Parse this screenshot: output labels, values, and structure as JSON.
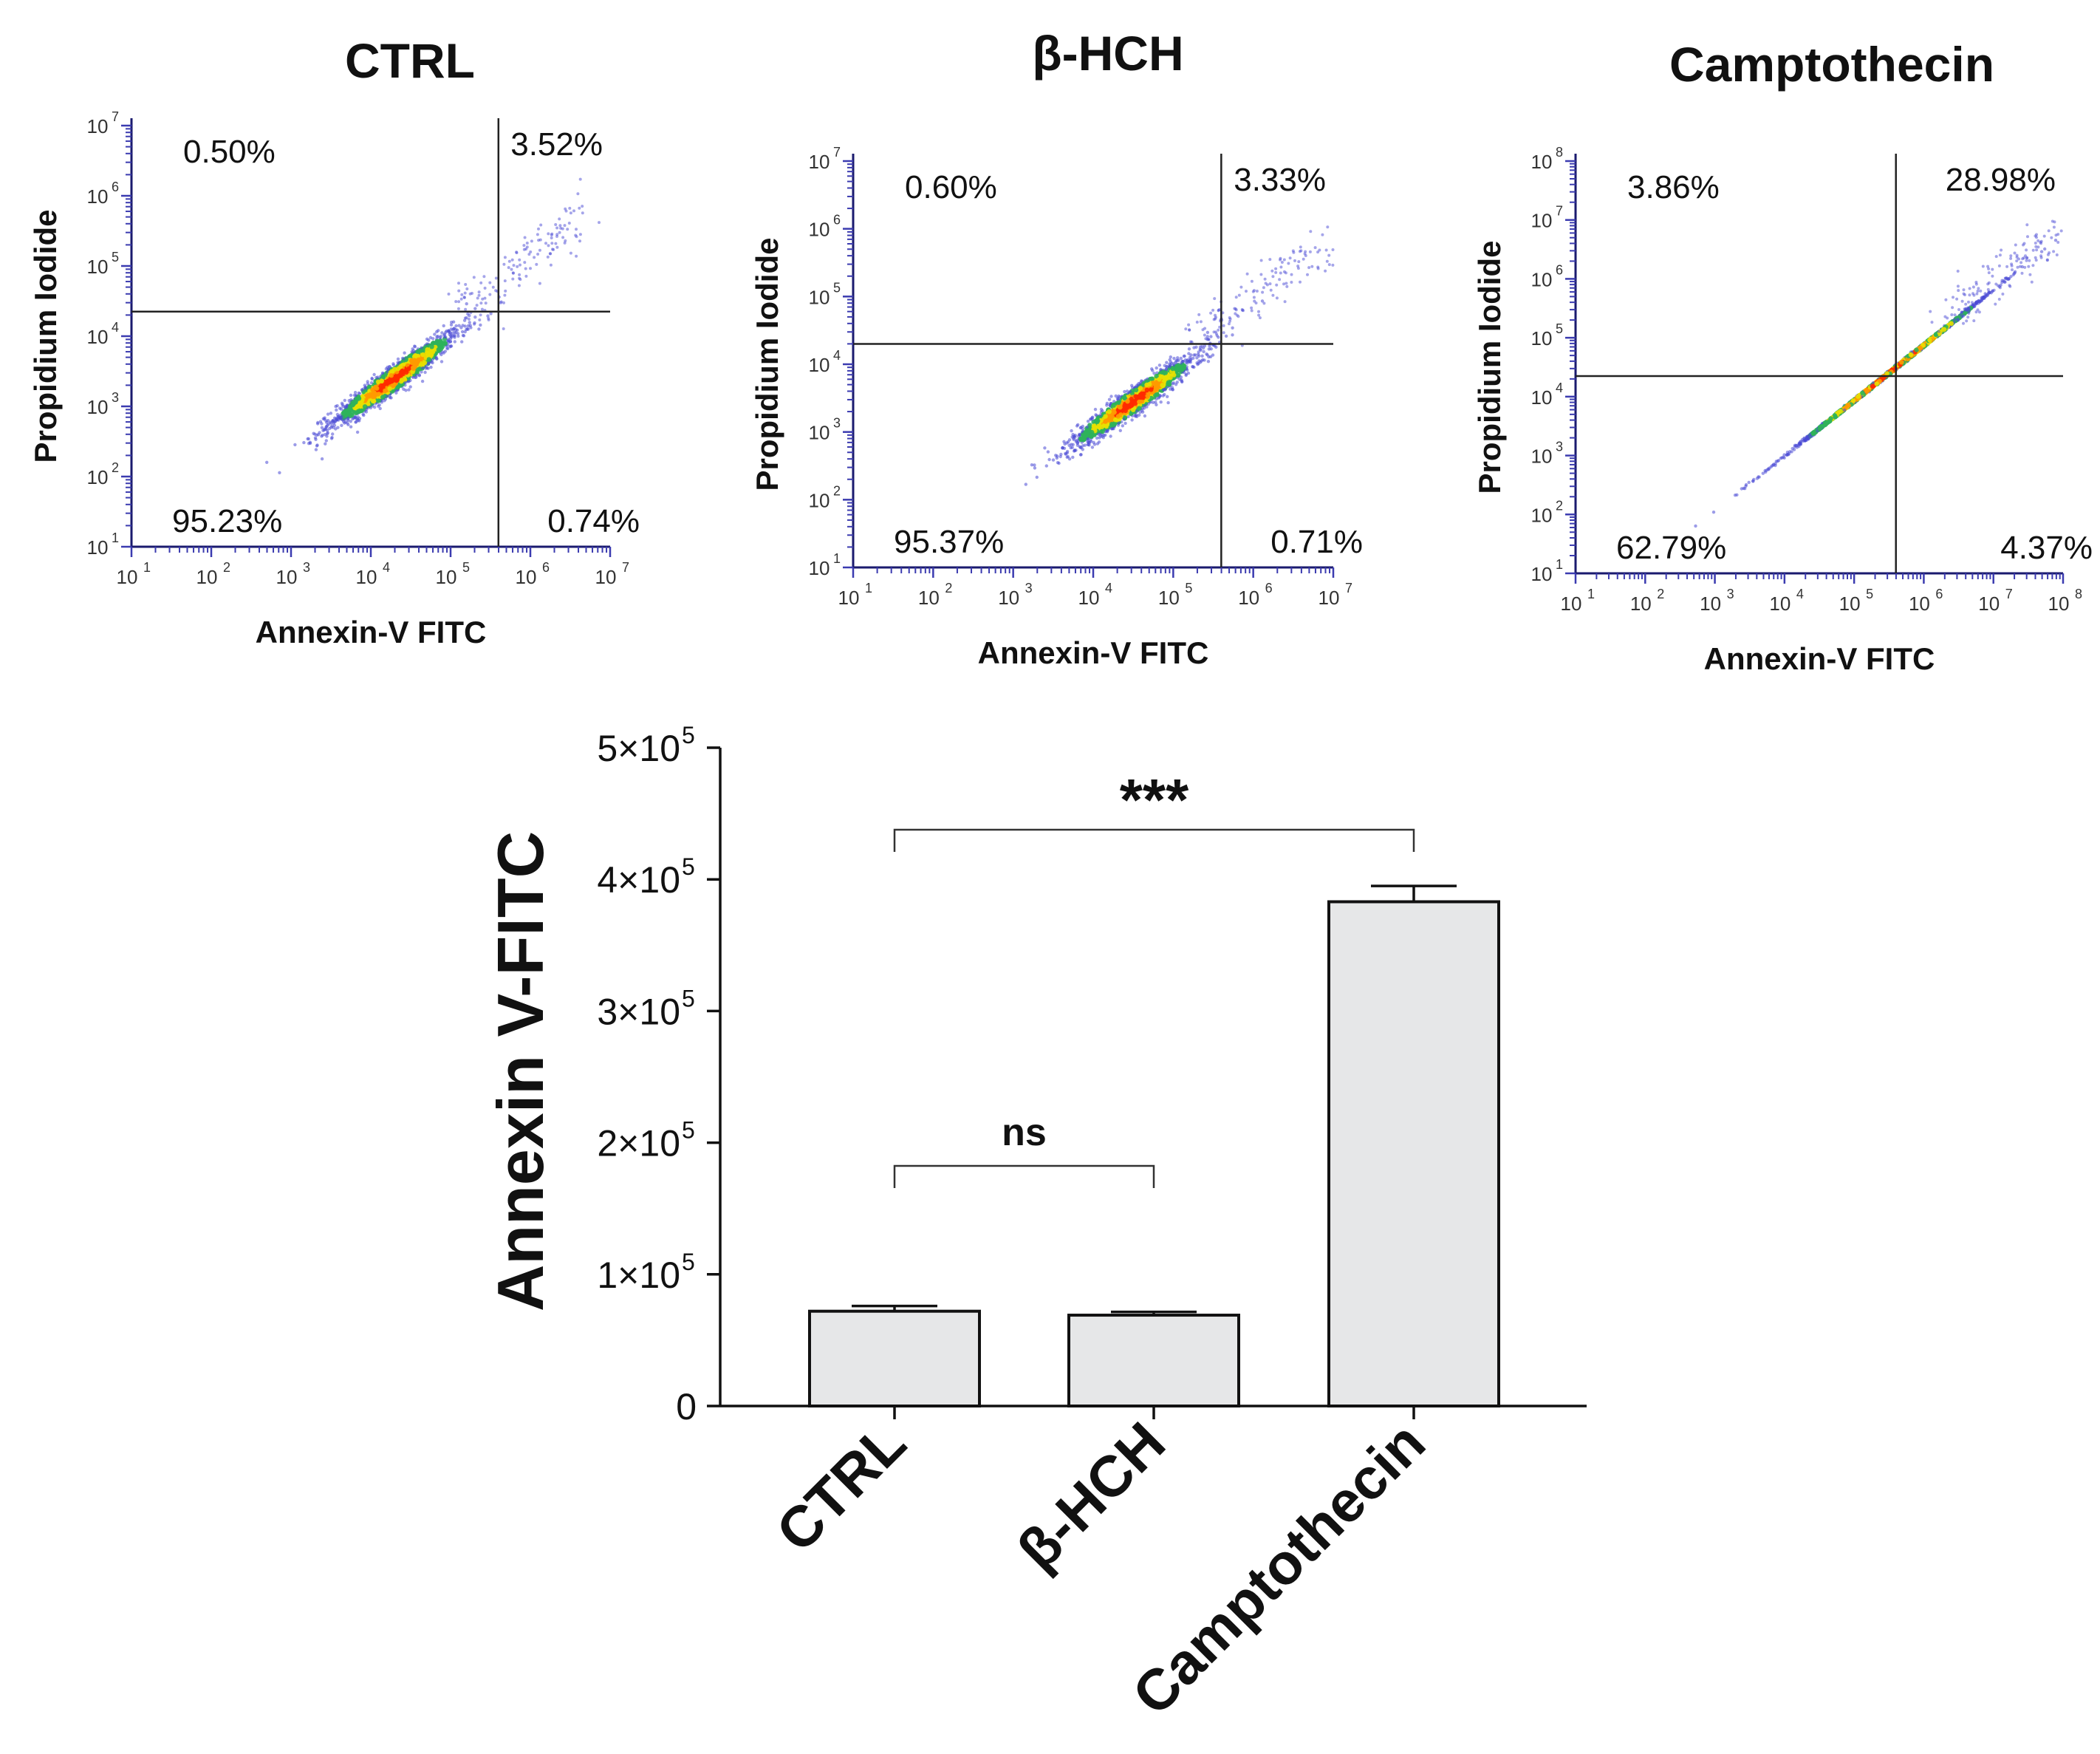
{
  "chart_data": [
    {
      "type": "scatter",
      "panel": "flow-ctrl",
      "title": "CTRL",
      "xlabel": "Annexin-V FITC",
      "ylabel": "Propidium Iodide",
      "x_scale": "log10",
      "y_scale": "log10",
      "xlim": [
        1,
        7
      ],
      "ylim": [
        1,
        7
      ],
      "x_ticks": [
        1,
        2,
        3,
        4,
        5,
        6,
        7
      ],
      "y_ticks": [
        1,
        2,
        3,
        4,
        5,
        6,
        7
      ],
      "gate": {
        "x": 5.6,
        "y": 4.35
      },
      "quadrants": {
        "UL": "0.50%",
        "UR": "3.52%",
        "LL": "95.23%",
        "LR": "0.74%"
      },
      "population": {
        "cx": 4.3,
        "cy": 3.4,
        "spread": 0.45
      }
    },
    {
      "type": "scatter",
      "panel": "flow-bhch",
      "title": "β-HCH",
      "xlabel": "Annexin-V FITC",
      "ylabel": "Propidium Iodide",
      "x_scale": "log10",
      "y_scale": "log10",
      "xlim": [
        1,
        7
      ],
      "ylim": [
        1,
        7
      ],
      "x_ticks": [
        1,
        2,
        3,
        4,
        5,
        6,
        7
      ],
      "y_ticks": [
        1,
        2,
        3,
        4,
        5,
        6,
        7
      ],
      "gate": {
        "x": 5.6,
        "y": 4.3
      },
      "quadrants": {
        "UL": "0.60%",
        "UR": "3.33%",
        "LL": "95.37%",
        "LR": "0.71%"
      },
      "population": {
        "cx": 4.5,
        "cy": 3.45,
        "spread": 0.45
      }
    },
    {
      "type": "scatter",
      "panel": "flow-campto",
      "title": "Camptothecin",
      "xlabel": "Annexin-V FITC",
      "ylabel": "Propidium Iodide",
      "x_scale": "log10",
      "y_scale": "log10",
      "xlim": [
        1,
        8
      ],
      "ylim": [
        1,
        8
      ],
      "x_ticks": [
        1,
        2,
        3,
        4,
        5,
        6,
        7,
        8
      ],
      "y_ticks": [
        1,
        2,
        3,
        4,
        5,
        6,
        7,
        8
      ],
      "gate": {
        "x": 5.6,
        "y": 4.35
      },
      "quadrants": {
        "UL": "3.86%",
        "UR": "28.98%",
        "LL": "62.79%",
        "LR": "4.37%"
      },
      "population": {
        "cx": 5.5,
        "cy": 4.4,
        "spread": 0.8
      }
    },
    {
      "type": "bar",
      "panel": "bar-annexin",
      "categories": [
        "CTRL",
        "β-HCH",
        "Camptothecin"
      ],
      "values": [
        72000,
        69000,
        383000
      ],
      "errors": [
        4000,
        2500,
        12000
      ],
      "ylabel": "Annexin V-FITC",
      "ylim": [
        0,
        500000
      ],
      "y_ticks": [
        0,
        100000,
        200000,
        300000,
        400000,
        500000
      ],
      "y_tick_labels": [
        "0",
        "1×10",
        "2×10",
        "3×10",
        "4×10",
        "5×10"
      ],
      "y_tick_exponents": [
        "",
        "5",
        "5",
        "5",
        "5",
        "5"
      ],
      "bar_color": "#e6e7e8",
      "significance": [
        {
          "from": 0,
          "to": 1,
          "label": "ns"
        },
        {
          "from": 0,
          "to": 2,
          "label": "***"
        }
      ]
    }
  ],
  "colors": {
    "axis_tick_blue": "#3b3bb0",
    "density_low": "#4b4bd6",
    "density_mid": "#2fb35a",
    "density_high": "#ff2a00"
  }
}
